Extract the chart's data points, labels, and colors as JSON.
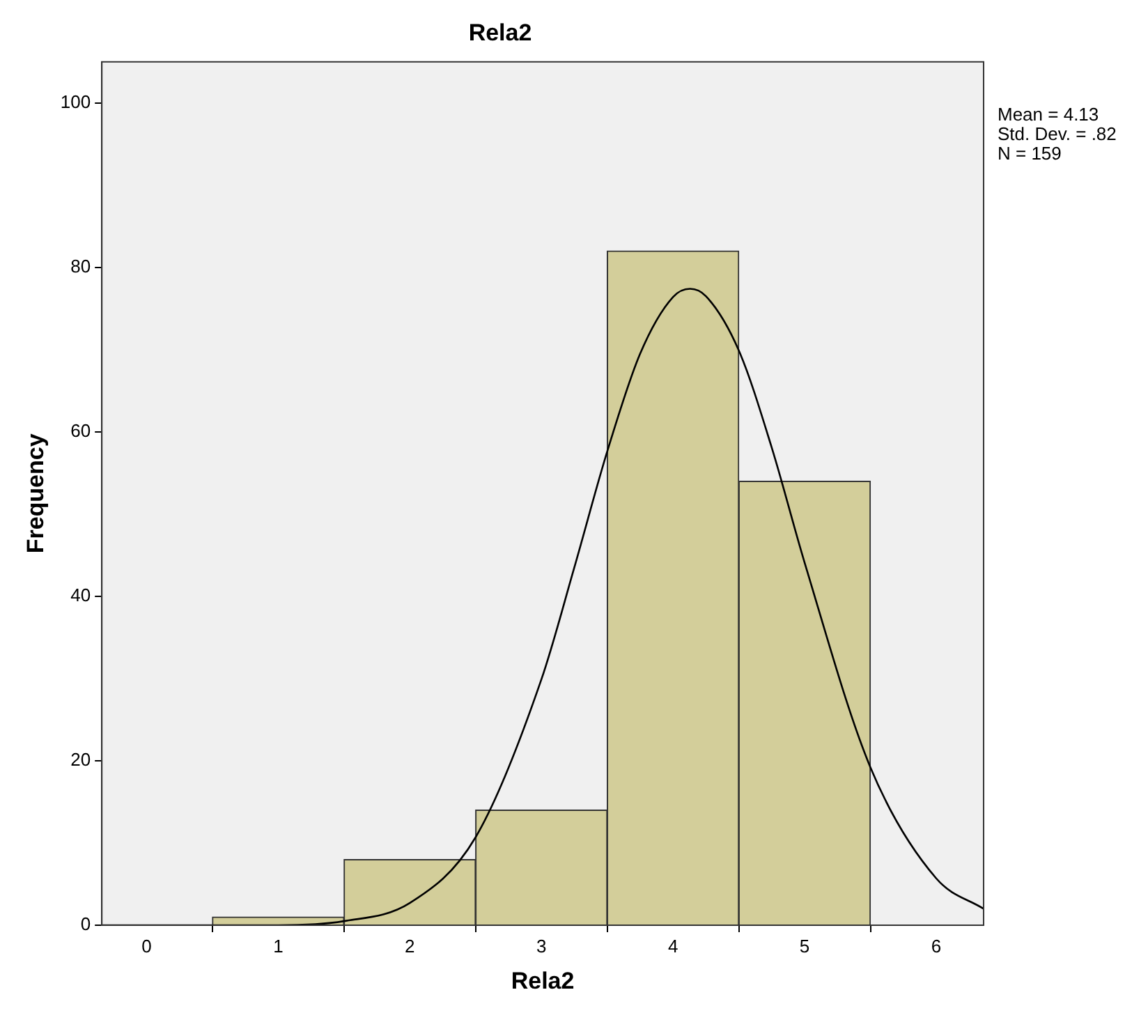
{
  "chart_data": {
    "type": "histogram",
    "title": "Rela2",
    "xlabel": "Rela2",
    "ylabel": "Frequency",
    "bins": [
      0.5,
      1.5,
      2.5,
      3.5,
      4.5,
      5.5
    ],
    "values": [
      1,
      8,
      14,
      82,
      54
    ],
    "color": "#d3ce9a",
    "series": [
      {
        "type": "line",
        "color": "#000000",
        "x": [
          -0.34,
          0.5,
          1.0,
          1.5,
          2.0,
          2.5,
          3.0,
          3.25,
          3.5,
          3.75,
          4.0,
          4.13,
          4.25,
          4.5,
          4.75,
          5.0,
          5.5,
          6.0,
          6.36
        ],
        "values": [
          0,
          0,
          0,
          0.5,
          2.7,
          10.7,
          29.9,
          43.5,
          57.6,
          69.5,
          76.4,
          77.4,
          76.5,
          69.9,
          58.1,
          44.1,
          19.2,
          5.7,
          2
        ]
      }
    ],
    "xlim": [
      -0.34,
      6.36
    ],
    "xticks": [
      0,
      1,
      2,
      3,
      4,
      5,
      6
    ],
    "ylim": [
      0,
      105
    ],
    "yticks": [
      0,
      20,
      40,
      60,
      80,
      100
    ],
    "grid": false,
    "legend": false,
    "annotations": [
      "Mean = 4.13",
      "Std. Dev. = .82",
      "N = 159"
    ]
  }
}
